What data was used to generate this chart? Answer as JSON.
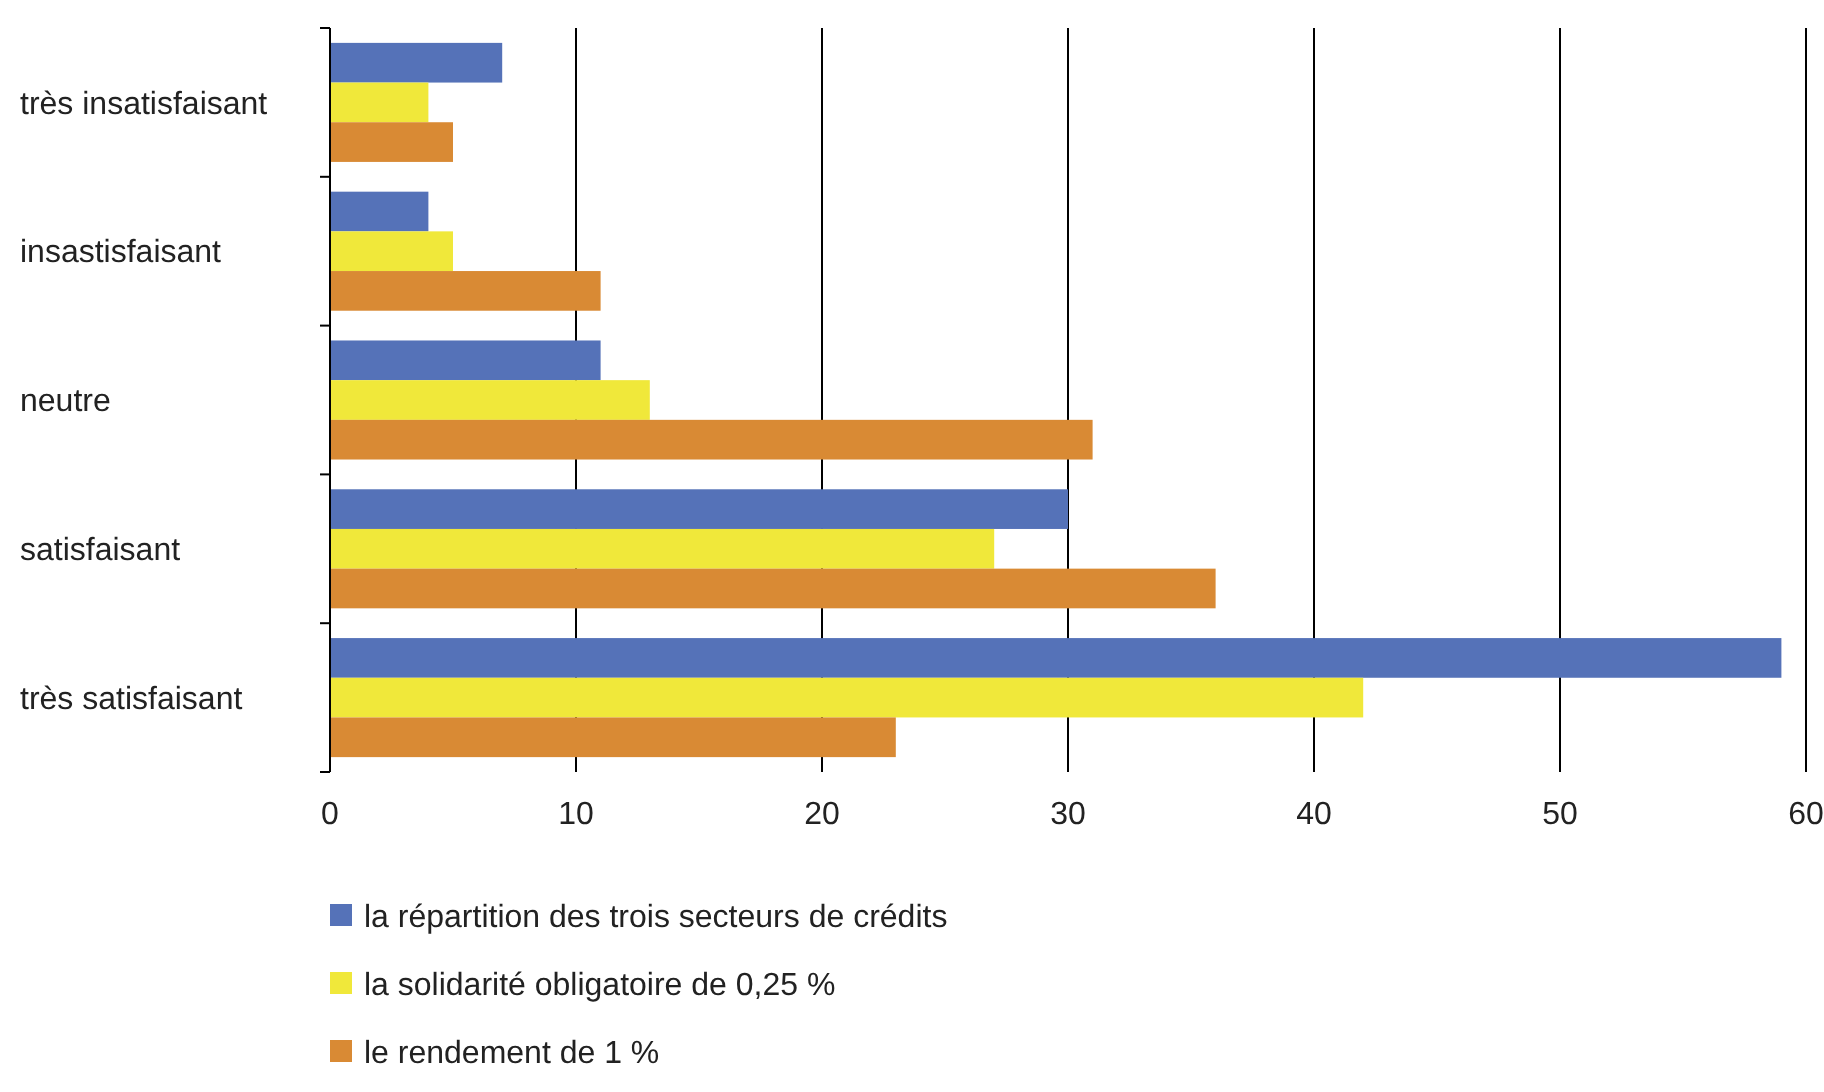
{
  "chart_data": {
    "type": "bar",
    "orientation": "horizontal",
    "categories": [
      "très insatisfaisant",
      "insastisfaisant",
      "neutre",
      "satisfaisant",
      "très satisfaisant"
    ],
    "series": [
      {
        "name": "la répartition des trois secteurs de crédits",
        "color": "#5572b8",
        "values": [
          7,
          4,
          11,
          30,
          59
        ]
      },
      {
        "name": "la solidarité obligatoire de 0,25 %",
        "color": "#f0e83a",
        "values": [
          4,
          5,
          13,
          27,
          42
        ]
      },
      {
        "name": "le rendement de 1 %",
        "color": "#d98a34",
        "values": [
          5,
          11,
          31,
          36,
          23
        ]
      }
    ],
    "xlim": [
      0,
      60
    ],
    "xticks": [
      0,
      10,
      20,
      30,
      40,
      50,
      60
    ],
    "grid": "x",
    "legend": "bottom"
  }
}
